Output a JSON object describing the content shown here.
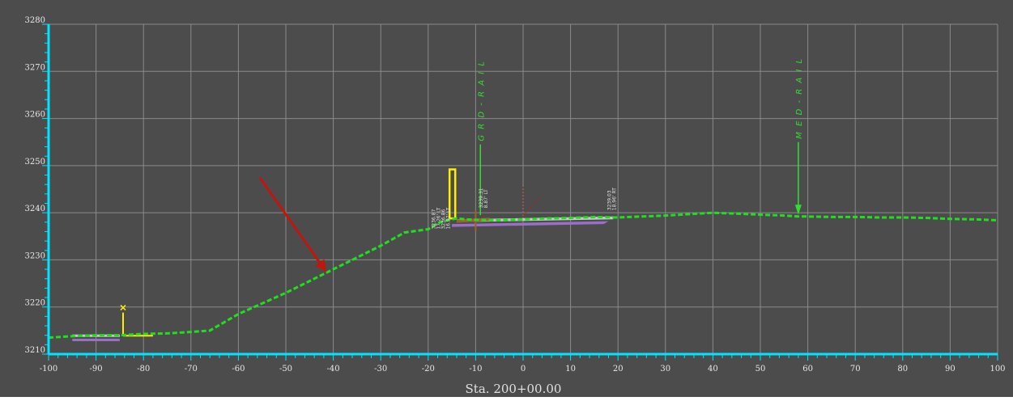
{
  "view": {
    "station_label": "Sta. 200+00.00"
  },
  "colors": {
    "background": "#4c4c4c",
    "grid": "#8a8a8a",
    "axis": "#00e5ff",
    "ground": "#1fe01f",
    "pavement": "#c8c8c8",
    "subgrade": "#9a6fc8",
    "marker": "#ffee00",
    "arrow": "#c0160e",
    "label_green": "#33dd33"
  },
  "chart_data": {
    "type": "cross-section",
    "xlim": [
      -100,
      100
    ],
    "ylim": [
      3210,
      3280
    ],
    "x_ticks": [
      -100,
      -90,
      -80,
      -70,
      -60,
      -50,
      -40,
      -30,
      -20,
      -10,
      0,
      10,
      20,
      30,
      40,
      50,
      60,
      70,
      80,
      90,
      100
    ],
    "y_ticks": [
      3210,
      3220,
      3230,
      3240,
      3250,
      3260,
      3270,
      3280
    ],
    "existing_ground": {
      "x": [
        -100,
        -95,
        -90,
        -85,
        -80,
        -75,
        -70,
        -66,
        -60,
        -50,
        -40,
        -30,
        -25,
        -20,
        -18,
        -16,
        -14,
        -12,
        -10,
        -5,
        0,
        5,
        10,
        15,
        20,
        25,
        30,
        35,
        40,
        45,
        50,
        55,
        58,
        60,
        65,
        70,
        75,
        80,
        85,
        90,
        95,
        100
      ],
      "y": [
        3213.5,
        3213.8,
        3214,
        3214,
        3214.3,
        3214.4,
        3214.7,
        3215,
        3218.5,
        3223,
        3228,
        3233,
        3235.8,
        3236.5,
        3237.8,
        3238.4,
        3238.8,
        3238.6,
        3238.5,
        3238.4,
        3238.6,
        3238.8,
        3238.9,
        3239.1,
        3239,
        3239.2,
        3239.4,
        3239.7,
        3240,
        3239.8,
        3239.6,
        3239.4,
        3239.2,
        3239.2,
        3239.1,
        3239.1,
        3239,
        3239,
        3238.9,
        3238.7,
        3238.6,
        3238.4
      ]
    },
    "annotations": {
      "grd_rail": {
        "label": "G R D - R A I L",
        "x": -9,
        "y_top": 3254.5
      },
      "med_rail": {
        "label": "M E D - R A I L",
        "x": 58,
        "y_top": 3255
      },
      "elev_label_a": {
        "line1": "3239.31",
        "line2": "8.87' LT",
        "x": -8.5,
        "y": 3241
      },
      "elev_label_b": {
        "line1": "3239.03",
        "line2": "18.96' RT",
        "x": 18.5,
        "y": 3240.5
      },
      "elev_label_c": {
        "line1": "3236.87",
        "line2": "17.26' LT",
        "line3": "3236.86",
        "line4": "16.97' LT",
        "x": -18.5,
        "y": 3236.5
      }
    }
  }
}
